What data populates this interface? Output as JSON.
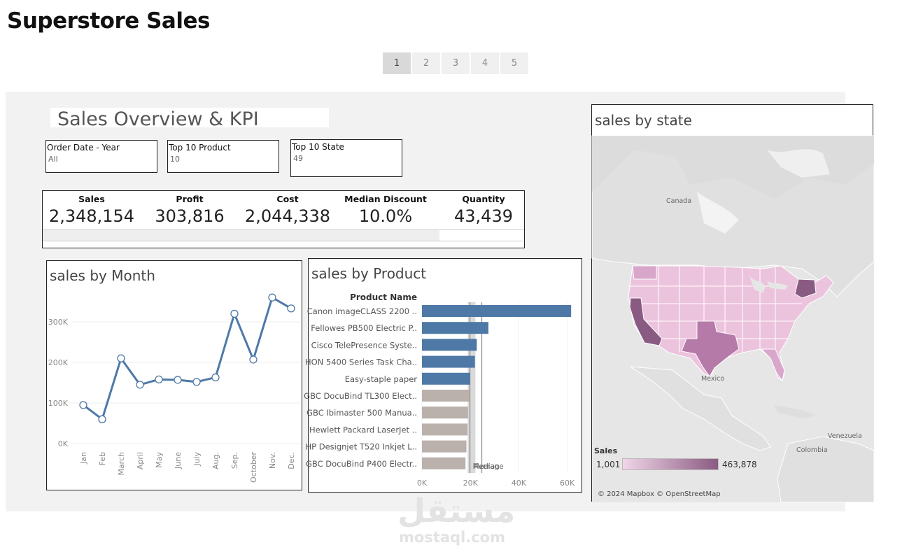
{
  "page_title": "Superstore Sales",
  "pager": [
    "1",
    "2",
    "3",
    "4",
    "5"
  ],
  "overview_title": "Sales Overview & KPI",
  "filters": [
    {
      "label": "Order Date - Year",
      "value": "All"
    },
    {
      "label": "Top 10 Product",
      "value": "10"
    },
    {
      "label": "Top 10 State",
      "value": "49"
    }
  ],
  "kpis": [
    {
      "label": "Sales",
      "value": "2,348,154"
    },
    {
      "label": "Profit",
      "value": "303,816"
    },
    {
      "label": "Cost",
      "value": "2,044,338"
    },
    {
      "label": "Median Discount",
      "value": "10.0%"
    },
    {
      "label": "Quantity",
      "value": "43,439"
    }
  ],
  "month_panel": {
    "title": "sales by Month"
  },
  "product_panel": {
    "title": "sales by Product",
    "header": "Product Name",
    "median_label": "Median",
    "average_label": "Average"
  },
  "map_panel": {
    "title": "sales by state",
    "legend_title": "Sales",
    "legend_min": "1,001",
    "legend_max": "463,878",
    "attribution": "© 2024 Mapbox © OpenStreetMap",
    "places": [
      "Canada",
      "Mexico",
      "Venezuela",
      "Colombia"
    ],
    "colors": {
      "low": "#f1d5e8",
      "high": "#8a5b82"
    }
  },
  "watermark": {
    "arabic": "مستقل",
    "latin": "mostaql.com"
  },
  "colors": {
    "line": "#4e79a7",
    "bar_top": "#4e79a7",
    "bar_other": "#bab0ac"
  },
  "chart_data": [
    {
      "type": "line",
      "title": "sales by Month",
      "categories": [
        "Jan",
        "Feb",
        "March",
        "April",
        "May",
        "June",
        "July",
        "Aug.",
        "Sep.",
        "October",
        "Nov.",
        "Dec."
      ],
      "values": [
        95000,
        60000,
        210000,
        145000,
        158000,
        157000,
        152000,
        163000,
        320000,
        207000,
        360000,
        333000
      ],
      "ylim": [
        0,
        400000
      ],
      "yticks": [
        0,
        100000,
        200000,
        300000
      ],
      "ytick_labels": [
        "0K",
        "100K",
        "200K",
        "300K"
      ],
      "grid": true
    },
    {
      "type": "bar",
      "orientation": "horizontal",
      "title": "sales by Product",
      "ylabel": "Product Name",
      "categories": [
        "Canon imageCLASS 2200 ..",
        "Fellowes PB500 Electric P..",
        "Cisco TelePresence Syste..",
        "HON 5400 Series Task Cha..",
        "Easy-staple paper",
        "GBC DocuBind TL300 Elect..",
        "GBC Ibimaster 500 Manua..",
        "Hewlett Packard LaserJet ..",
        "HP Designjet T520 Inkjet L..",
        "GBC DocuBind P400 Electr.."
      ],
      "values": [
        61600,
        27450,
        22640,
        21870,
        19850,
        19820,
        19020,
        18840,
        18370,
        17970
      ],
      "xlim": [
        0,
        63000
      ],
      "xticks": [
        0,
        20000,
        40000,
        60000
      ],
      "xtick_labels": [
        "0K",
        "20K",
        "40K",
        "60K"
      ],
      "reference_lines": {
        "median": 19835,
        "average": 24740
      }
    }
  ]
}
